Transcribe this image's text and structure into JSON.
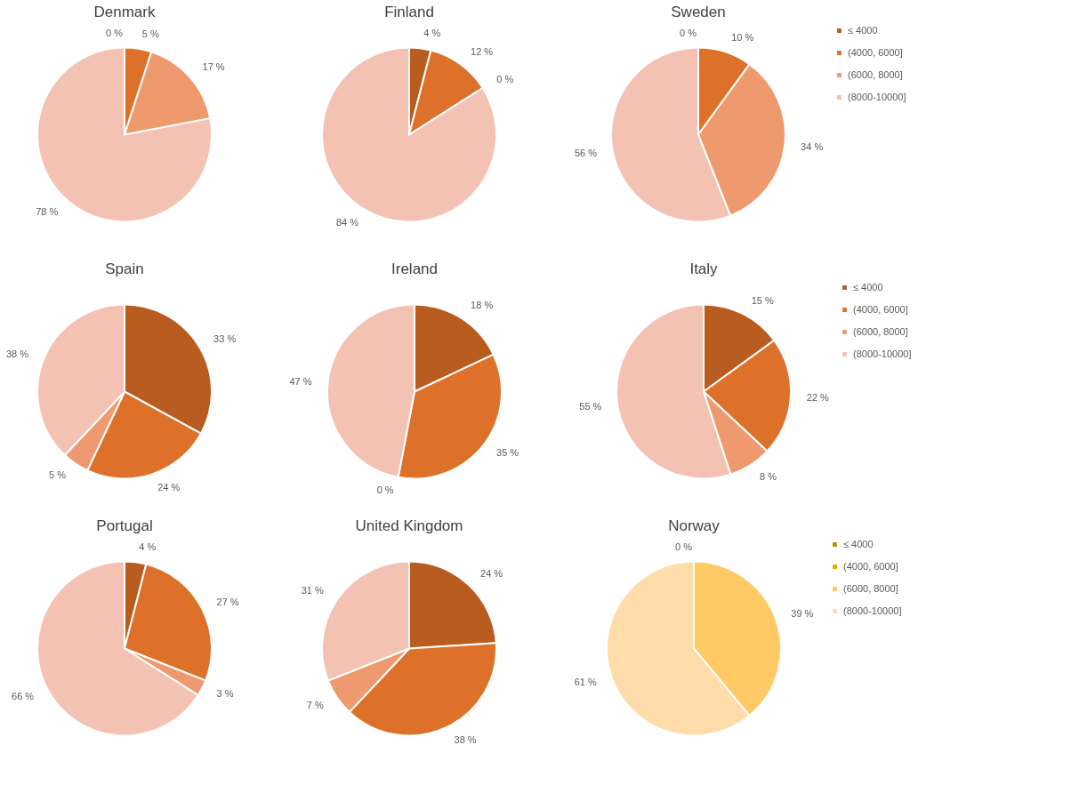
{
  "chart_data": [
    {
      "type": "pie",
      "title": "Denmark",
      "categories": [
        null,
        null,
        null,
        null
      ],
      "values": [
        0,
        5,
        17,
        78
      ],
      "value_labels": [
        "0 %",
        "5 %",
        "17 %",
        "78 %"
      ],
      "colors": [
        "#b85c20",
        "#dd712a",
        "#ef9a6e",
        "#f4c2b2"
      ],
      "legend": false
    },
    {
      "type": "pie",
      "title": "Finland",
      "categories": [
        null,
        null,
        null,
        null
      ],
      "values": [
        4,
        12,
        0,
        84
      ],
      "value_labels": [
        "4 %",
        "12 %",
        "0 %",
        "84 %"
      ],
      "colors": [
        "#b85c20",
        "#dd712a",
        "#ef9a6e",
        "#f4c2b2"
      ],
      "legend": false
    },
    {
      "type": "pie",
      "title": "Sweden",
      "categories": [
        "≤ 4000",
        "(4000, 6000]",
        "(6000,  8000]",
        "(8000-10000]"
      ],
      "values": [
        0,
        10,
        34,
        56
      ],
      "value_labels": [
        "0 %",
        "10 %",
        "34 %",
        "56 %"
      ],
      "colors": [
        "#b85c20",
        "#dd712a",
        "#ef9a6e",
        "#f4c2b2"
      ],
      "legend": "right"
    },
    {
      "type": "pie",
      "title": "Spain",
      "categories": [
        null,
        null,
        null,
        null
      ],
      "values": [
        33,
        24,
        5,
        38
      ],
      "value_labels": [
        "33 %",
        "24 %",
        "5 %",
        "38 %"
      ],
      "colors": [
        "#b85c20",
        "#dd712a",
        "#ef9a6e",
        "#f4c2b2"
      ],
      "legend": false
    },
    {
      "type": "pie",
      "title": "Ireland",
      "categories": [
        null,
        null,
        null,
        null
      ],
      "values": [
        18,
        35,
        0,
        47
      ],
      "value_labels": [
        "18 %",
        "35 %",
        "0 %",
        "47 %"
      ],
      "colors": [
        "#b85c20",
        "#dd712a",
        "#ef9a6e",
        "#f4c2b2"
      ],
      "legend": false
    },
    {
      "type": "pie",
      "title": "Italy",
      "categories": [
        "≤ 4000",
        "(4000, 6000]",
        "(6000,  8000]",
        "(8000-10000]"
      ],
      "values": [
        15,
        22,
        8,
        55
      ],
      "value_labels": [
        "15 %",
        "22 %",
        "8 %",
        "55 %"
      ],
      "colors": [
        "#b85c20",
        "#dd712a",
        "#ef9a6e",
        "#f4c2b2"
      ],
      "legend": "right"
    },
    {
      "type": "pie",
      "title": "Portugal",
      "categories": [
        null,
        null,
        null,
        null
      ],
      "values": [
        4,
        27,
        3,
        66
      ],
      "value_labels": [
        "4 %",
        "27 %",
        "3 %",
        "66 %"
      ],
      "colors": [
        "#b85c20",
        "#dd712a",
        "#ef9a6e",
        "#f4c2b2"
      ],
      "legend": false
    },
    {
      "type": "pie",
      "title": "United Kingdom",
      "categories": [
        null,
        null,
        null,
        null
      ],
      "values": [
        24,
        38,
        7,
        31
      ],
      "value_labels": [
        "24 %",
        "38 %",
        "7 %",
        "31 %"
      ],
      "colors": [
        "#b85c20",
        "#dd712a",
        "#ef9a6e",
        "#f4c2b2"
      ],
      "legend": false
    },
    {
      "type": "pie",
      "title": "Norway",
      "categories": [
        "≤ 4000",
        "(4000, 6000]",
        "(6000,  8000]",
        "(8000-10000]"
      ],
      "values": [
        0,
        0,
        39,
        61
      ],
      "value_labels": [
        "0 %",
        null,
        "39 %",
        "61 %"
      ],
      "colors": [
        "#b8900a",
        "#e8a800",
        "#ffc966",
        "#ffdcaa"
      ],
      "legend": "right"
    }
  ]
}
